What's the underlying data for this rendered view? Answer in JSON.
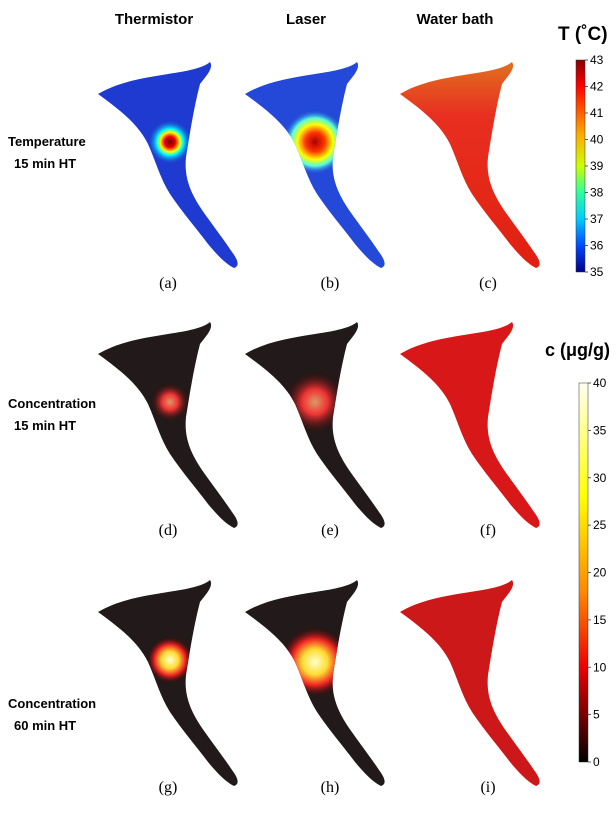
{
  "columns": [
    "Thermistor",
    "Laser",
    "Water bath"
  ],
  "rows": [
    {
      "line1": "Temperature",
      "line2": "15 min HT"
    },
    {
      "line1": "Concentration",
      "line2": "15 min HT"
    },
    {
      "line1": "Concentration",
      "line2": "60 min HT"
    }
  ],
  "panels": [
    "(a)",
    "(b)",
    "(c)",
    "(d)",
    "(e)",
    "(f)",
    "(g)",
    "(h)",
    "(i)"
  ],
  "colorbars": [
    {
      "title": "T (˚C)",
      "ticks": [
        43,
        42,
        41,
        40,
        39,
        38,
        37,
        36,
        35
      ]
    },
    {
      "title": "c (μg/g)",
      "ticks": [
        40,
        35,
        30,
        25,
        20,
        15,
        10,
        5,
        0
      ]
    }
  ]
}
